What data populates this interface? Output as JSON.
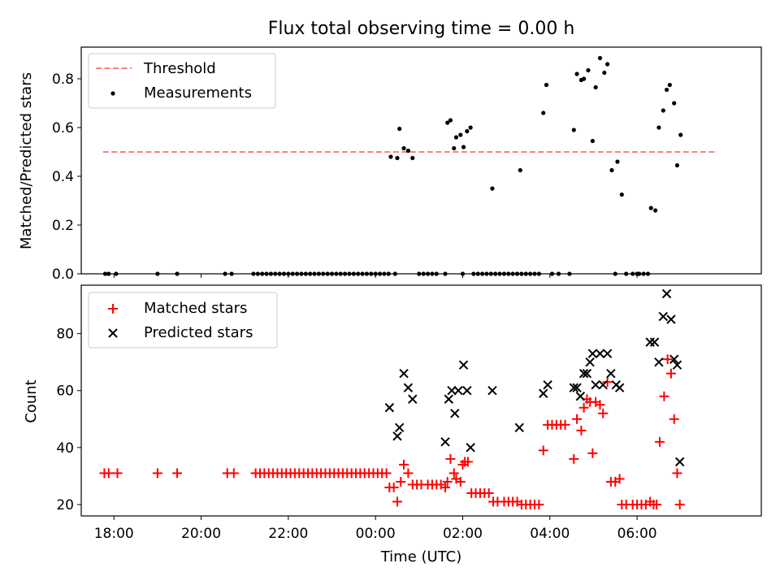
{
  "figure": {
    "title": "Flux total observing time = 0.00 h",
    "xlabel": "Time (UTC)",
    "x_ticks": [
      "18:00",
      "20:00",
      "22:00",
      "00:00",
      "02:00",
      "04:00",
      "06:00"
    ]
  },
  "colors": {
    "threshold": "#ff8080",
    "matched": "#ff0000",
    "predicted": "#000000",
    "measurement": "#000000"
  },
  "chart_data": [
    {
      "type": "scatter",
      "title": "Flux total observing time = 0.00 h",
      "xlabel": "",
      "ylabel": "Matched/Predicted stars",
      "x_unit": "hours since 18:00 UTC",
      "xlim": [
        -0.75,
        14.85
      ],
      "ylim": [
        0,
        0.93
      ],
      "y_ticks": [
        "0.0",
        "0.2",
        "0.4",
        "0.6",
        "0.8"
      ],
      "legend": {
        "position": "top-left",
        "entries": [
          "Threshold",
          "Measurements"
        ]
      },
      "threshold": {
        "name": "Threshold",
        "value": 0.5,
        "x_range": [
          -0.25,
          13.85
        ]
      },
      "series": [
        {
          "name": "Measurements",
          "points": [
            [
              -0.2,
              0
            ],
            [
              -0.12,
              0
            ],
            [
              0.05,
              0
            ],
            [
              1.0,
              0
            ],
            [
              1.45,
              0
            ],
            [
              2.55,
              0
            ],
            [
              2.7,
              0
            ],
            [
              3.2,
              0
            ],
            [
              3.3,
              0
            ],
            [
              3.4,
              0
            ],
            [
              3.5,
              0
            ],
            [
              3.6,
              0
            ],
            [
              3.7,
              0
            ],
            [
              3.8,
              0
            ],
            [
              3.9,
              0
            ],
            [
              4.0,
              0
            ],
            [
              4.1,
              0
            ],
            [
              4.2,
              0
            ],
            [
              4.3,
              0
            ],
            [
              4.4,
              0
            ],
            [
              4.5,
              0
            ],
            [
              4.6,
              0
            ],
            [
              4.7,
              0
            ],
            [
              4.8,
              0
            ],
            [
              4.9,
              0
            ],
            [
              5.0,
              0
            ],
            [
              5.1,
              0
            ],
            [
              5.2,
              0
            ],
            [
              5.3,
              0
            ],
            [
              5.4,
              0
            ],
            [
              5.5,
              0
            ],
            [
              5.6,
              0
            ],
            [
              5.7,
              0
            ],
            [
              5.8,
              0
            ],
            [
              5.9,
              0
            ],
            [
              6.0,
              0
            ],
            [
              6.1,
              0
            ],
            [
              6.2,
              0
            ],
            [
              6.3,
              0
            ],
            [
              6.35,
              0.48
            ],
            [
              6.45,
              0
            ],
            [
              6.5,
              0.475
            ],
            [
              6.55,
              0.595
            ],
            [
              6.65,
              0.515
            ],
            [
              6.75,
              0.505
            ],
            [
              6.85,
              0.475
            ],
            [
              7.0,
              0
            ],
            [
              7.1,
              0
            ],
            [
              7.2,
              0
            ],
            [
              7.3,
              0
            ],
            [
              7.4,
              0
            ],
            [
              7.6,
              0
            ],
            [
              7.65,
              0.62
            ],
            [
              7.72,
              0.63
            ],
            [
              7.8,
              0.515
            ],
            [
              7.85,
              0.56
            ],
            [
              7.95,
              0.57
            ],
            [
              8.0,
              0
            ],
            [
              8.02,
              0.52
            ],
            [
              8.1,
              0.585
            ],
            [
              8.18,
              0.6
            ],
            [
              8.25,
              0
            ],
            [
              8.35,
              0
            ],
            [
              8.45,
              0
            ],
            [
              8.55,
              0
            ],
            [
              8.65,
              0
            ],
            [
              8.68,
              0.35
            ],
            [
              8.75,
              0
            ],
            [
              8.85,
              0
            ],
            [
              8.95,
              0
            ],
            [
              9.05,
              0
            ],
            [
              9.15,
              0
            ],
            [
              9.25,
              0
            ],
            [
              9.35,
              0
            ],
            [
              9.32,
              0.425
            ],
            [
              9.45,
              0
            ],
            [
              9.55,
              0
            ],
            [
              9.65,
              0
            ],
            [
              9.75,
              0
            ],
            [
              9.85,
              0.66
            ],
            [
              9.92,
              0.775
            ],
            [
              10.05,
              0
            ],
            [
              10.2,
              0
            ],
            [
              10.45,
              0
            ],
            [
              10.55,
              0.59
            ],
            [
              10.62,
              0.82
            ],
            [
              10.72,
              0.795
            ],
            [
              10.78,
              0.8
            ],
            [
              10.88,
              0.835
            ],
            [
              10.98,
              0.545
            ],
            [
              11.05,
              0.765
            ],
            [
              11.15,
              0.885
            ],
            [
              11.25,
              0.825
            ],
            [
              11.32,
              0.86
            ],
            [
              11.42,
              0.425
            ],
            [
              11.5,
              0
            ],
            [
              11.55,
              0.46
            ],
            [
              11.65,
              0.325
            ],
            [
              11.75,
              0
            ],
            [
              11.9,
              0
            ],
            [
              12.0,
              0
            ],
            [
              12.05,
              0
            ],
            [
              12.15,
              0
            ],
            [
              12.25,
              0
            ],
            [
              12.32,
              0.27
            ],
            [
              12.42,
              0.26
            ],
            [
              12.5,
              0.6
            ],
            [
              12.6,
              0.67
            ],
            [
              12.68,
              0.755
            ],
            [
              12.75,
              0.775
            ],
            [
              12.85,
              0.7
            ],
            [
              12.92,
              0.445
            ],
            [
              13.0,
              0.57
            ]
          ]
        }
      ]
    },
    {
      "type": "scatter",
      "title": "",
      "xlabel": "Time (UTC)",
      "ylabel": "Count",
      "x_unit": "hours since 18:00 UTC",
      "xlim": [
        -0.75,
        14.85
      ],
      "ylim": [
        16,
        97
      ],
      "y_ticks": [
        "20",
        "40",
        "60",
        "80"
      ],
      "legend": {
        "position": "top-left",
        "entries": [
          "Matched stars",
          "Predicted stars"
        ]
      },
      "series": [
        {
          "name": "Matched stars",
          "marker": "+",
          "points": [
            [
              -0.22,
              31
            ],
            [
              -0.12,
              31
            ],
            [
              0.08,
              31
            ],
            [
              1.0,
              31
            ],
            [
              1.45,
              31
            ],
            [
              2.6,
              31
            ],
            [
              2.75,
              31
            ],
            [
              3.25,
              31
            ],
            [
              3.35,
              31
            ],
            [
              3.45,
              31
            ],
            [
              3.55,
              31
            ],
            [
              3.65,
              31
            ],
            [
              3.75,
              31
            ],
            [
              3.85,
              31
            ],
            [
              3.95,
              31
            ],
            [
              4.05,
              31
            ],
            [
              4.15,
              31
            ],
            [
              4.25,
              31
            ],
            [
              4.35,
              31
            ],
            [
              4.45,
              31
            ],
            [
              4.55,
              31
            ],
            [
              4.65,
              31
            ],
            [
              4.75,
              31
            ],
            [
              4.85,
              31
            ],
            [
              4.95,
              31
            ],
            [
              5.05,
              31
            ],
            [
              5.15,
              31
            ],
            [
              5.25,
              31
            ],
            [
              5.35,
              31
            ],
            [
              5.45,
              31
            ],
            [
              5.55,
              31
            ],
            [
              5.65,
              31
            ],
            [
              5.75,
              31
            ],
            [
              5.85,
              31
            ],
            [
              5.95,
              31
            ],
            [
              6.05,
              31
            ],
            [
              6.15,
              31
            ],
            [
              6.25,
              31
            ],
            [
              6.32,
              26
            ],
            [
              6.42,
              26
            ],
            [
              6.5,
              21
            ],
            [
              6.58,
              28
            ],
            [
              6.65,
              34
            ],
            [
              6.75,
              31
            ],
            [
              6.85,
              27
            ],
            [
              6.95,
              27
            ],
            [
              7.05,
              27
            ],
            [
              7.2,
              27
            ],
            [
              7.3,
              27
            ],
            [
              7.4,
              27
            ],
            [
              7.5,
              27
            ],
            [
              7.6,
              26
            ],
            [
              7.65,
              28
            ],
            [
              7.72,
              36
            ],
            [
              7.8,
              31
            ],
            [
              7.85,
              29
            ],
            [
              7.95,
              28
            ],
            [
              8.0,
              34
            ],
            [
              8.05,
              35
            ],
            [
              8.12,
              35
            ],
            [
              8.2,
              24
            ],
            [
              8.3,
              24
            ],
            [
              8.4,
              24
            ],
            [
              8.5,
              24
            ],
            [
              8.6,
              24
            ],
            [
              8.7,
              21
            ],
            [
              8.8,
              21
            ],
            [
              8.95,
              21
            ],
            [
              9.05,
              21
            ],
            [
              9.15,
              21
            ],
            [
              9.25,
              21
            ],
            [
              9.35,
              20
            ],
            [
              9.45,
              20
            ],
            [
              9.55,
              20
            ],
            [
              9.65,
              20
            ],
            [
              9.75,
              20
            ],
            [
              9.85,
              39
            ],
            [
              9.95,
              48
            ],
            [
              10.05,
              48
            ],
            [
              10.15,
              48
            ],
            [
              10.25,
              48
            ],
            [
              10.35,
              48
            ],
            [
              10.55,
              36
            ],
            [
              10.62,
              50
            ],
            [
              10.72,
              46
            ],
            [
              10.78,
              54
            ],
            [
              10.85,
              57
            ],
            [
              10.92,
              56
            ],
            [
              10.98,
              38
            ],
            [
              11.05,
              56
            ],
            [
              11.15,
              55
            ],
            [
              11.22,
              52
            ],
            [
              11.32,
              63
            ],
            [
              11.4,
              28
            ],
            [
              11.5,
              28
            ],
            [
              11.6,
              29
            ],
            [
              11.65,
              20
            ],
            [
              11.75,
              20
            ],
            [
              11.9,
              20
            ],
            [
              12.0,
              20
            ],
            [
              12.1,
              20
            ],
            [
              12.2,
              20
            ],
            [
              12.3,
              21
            ],
            [
              12.38,
              20
            ],
            [
              12.45,
              20
            ],
            [
              12.52,
              42
            ],
            [
              12.62,
              58
            ],
            [
              12.7,
              71
            ],
            [
              12.78,
              66
            ],
            [
              12.85,
              50
            ],
            [
              12.92,
              31
            ],
            [
              12.98,
              20
            ]
          ]
        },
        {
          "name": "Predicted stars",
          "marker": "x",
          "points": [
            [
              6.32,
              54
            ],
            [
              6.5,
              44
            ],
            [
              6.55,
              47
            ],
            [
              6.65,
              66
            ],
            [
              6.75,
              61
            ],
            [
              6.85,
              57
            ],
            [
              7.6,
              42
            ],
            [
              7.68,
              57
            ],
            [
              7.75,
              60
            ],
            [
              7.82,
              52
            ],
            [
              7.9,
              60
            ],
            [
              8.02,
              69
            ],
            [
              8.1,
              60
            ],
            [
              8.18,
              40
            ],
            [
              8.68,
              60
            ],
            [
              9.3,
              47
            ],
            [
              9.85,
              59
            ],
            [
              9.95,
              62
            ],
            [
              10.55,
              61
            ],
            [
              10.62,
              61
            ],
            [
              10.7,
              58
            ],
            [
              10.78,
              66
            ],
            [
              10.85,
              66
            ],
            [
              10.92,
              70
            ],
            [
              10.98,
              73
            ],
            [
              11.05,
              62
            ],
            [
              11.15,
              73
            ],
            [
              11.22,
              62
            ],
            [
              11.32,
              73
            ],
            [
              11.4,
              66
            ],
            [
              11.52,
              62
            ],
            [
              11.6,
              61
            ],
            [
              12.3,
              77
            ],
            [
              12.4,
              77
            ],
            [
              12.5,
              70
            ],
            [
              12.6,
              86
            ],
            [
              12.68,
              94
            ],
            [
              12.78,
              85
            ],
            [
              12.85,
              71
            ],
            [
              12.92,
              69
            ],
            [
              12.98,
              35
            ]
          ]
        }
      ]
    }
  ]
}
